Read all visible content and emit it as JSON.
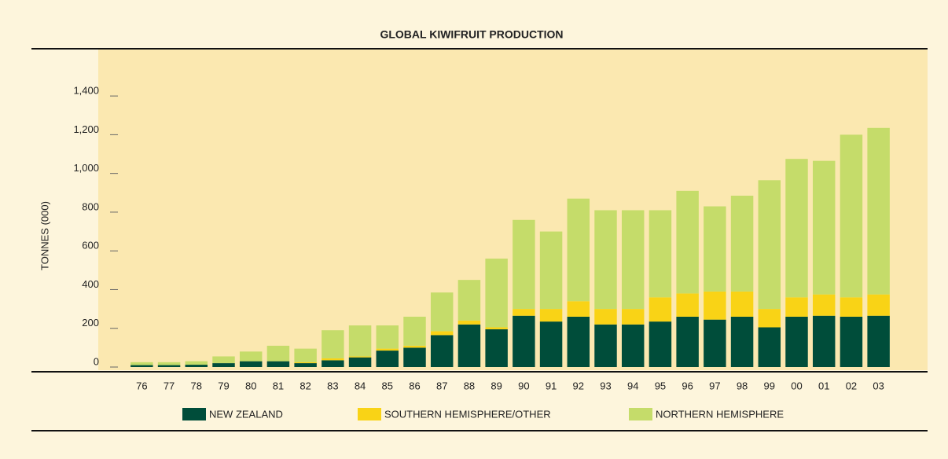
{
  "chart_data": {
    "type": "stacked-bar",
    "title": "GLOBAL KIWIFRUIT PRODUCTION",
    "y_label": "TONNES (000)",
    "categories": [
      "76",
      "77",
      "78",
      "79",
      "80",
      "81",
      "82",
      "83",
      "84",
      "85",
      "86",
      "87",
      "88",
      "89",
      "90",
      "91",
      "92",
      "93",
      "94",
      "95",
      "96",
      "97",
      "98",
      "99",
      "00",
      "01",
      "02",
      "03"
    ],
    "series": [
      {
        "name": "NEW ZEALAND",
        "color": "#004d3a",
        "values": [
          10,
          10,
          12,
          20,
          30,
          30,
          20,
          35,
          50,
          85,
          100,
          165,
          220,
          195,
          265,
          235,
          260,
          220,
          220,
          235,
          260,
          245,
          260,
          205,
          260,
          265,
          260,
          265
        ]
      },
      {
        "name": "SOUTHERN HEMISPHERE/OTHER",
        "color": "#f9d316",
        "values": [
          0,
          0,
          0,
          0,
          0,
          0,
          5,
          10,
          5,
          10,
          10,
          20,
          20,
          10,
          35,
          65,
          80,
          80,
          80,
          125,
          120,
          145,
          130,
          95,
          100,
          110,
          100,
          110
        ]
      },
      {
        "name": "NORTHERN HEMISPHERE",
        "color": "#c5dc6a",
        "values": [
          15,
          15,
          18,
          35,
          50,
          80,
          70,
          145,
          160,
          120,
          150,
          200,
          210,
          355,
          460,
          400,
          530,
          510,
          510,
          450,
          530,
          440,
          495,
          665,
          715,
          690,
          840,
          860
        ]
      }
    ],
    "ylim": [
      0,
      1640
    ],
    "yticks": [
      0,
      200,
      400,
      600,
      800,
      {
        "value": 1000,
        "label": "1,000"
      },
      {
        "value": 1200,
        "label": "1,200"
      },
      {
        "value": 1400,
        "label": "1,400"
      }
    ]
  }
}
